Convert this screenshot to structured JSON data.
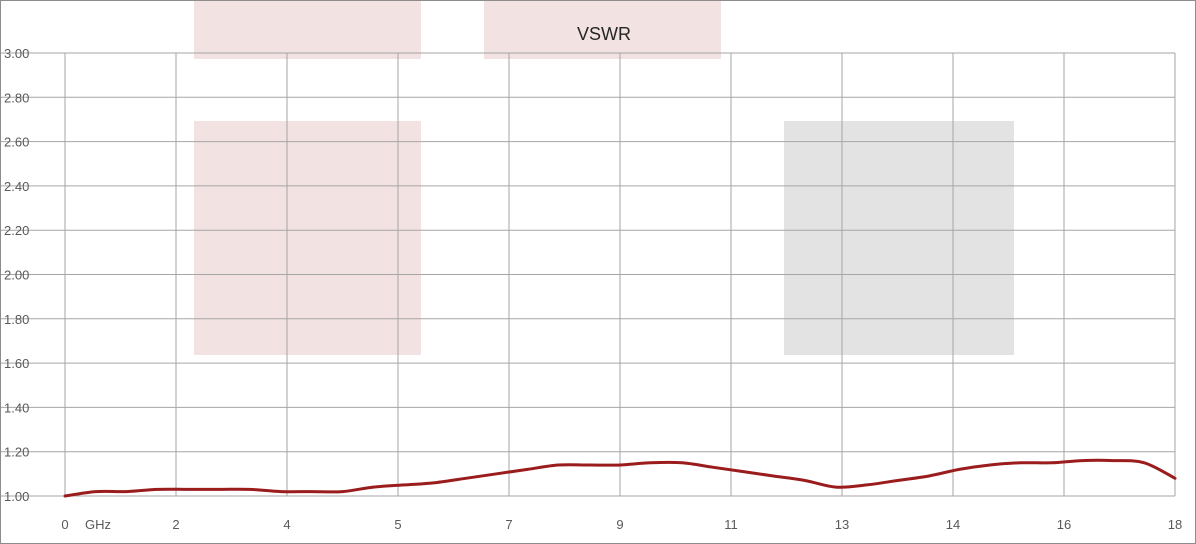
{
  "chart_data": {
    "type": "line",
    "title": "VSWR",
    "xlabel": "",
    "ylabel": "",
    "x_tick_labels": [
      "0",
      "2",
      "4",
      "5",
      "7",
      "9",
      "11",
      "13",
      "14",
      "16",
      "18"
    ],
    "x_unit_label": "GHz",
    "y_tick_labels": [
      "1.00",
      "1.20",
      "1.40",
      "1.60",
      "1.80",
      "2.00",
      "2.20",
      "2.40",
      "2.60",
      "2.80",
      "3.00"
    ],
    "ylim": [
      1.0,
      3.0
    ],
    "xlim": [
      0,
      18
    ],
    "grid": true,
    "series": [
      {
        "color": "#9b1c1c",
        "x": [
          0,
          0.5,
          1,
          1.5,
          2,
          2.5,
          3,
          3.5,
          4,
          4.5,
          5,
          5.5,
          6,
          6.5,
          7,
          7.5,
          8,
          8.5,
          9,
          9.5,
          10,
          10.5,
          11,
          11.5,
          12,
          12.5,
          13,
          13.5,
          14,
          14.5,
          15,
          15.5,
          16,
          16.5,
          17,
          17.5,
          18
        ],
        "y": [
          1.0,
          1.02,
          1.02,
          1.03,
          1.03,
          1.03,
          1.03,
          1.02,
          1.02,
          1.02,
          1.04,
          1.05,
          1.06,
          1.08,
          1.1,
          1.12,
          1.14,
          1.14,
          1.14,
          1.15,
          1.15,
          1.13,
          1.11,
          1.09,
          1.07,
          1.04,
          1.05,
          1.07,
          1.09,
          1.12,
          1.14,
          1.15,
          1.15,
          1.16,
          1.16,
          1.15,
          1.08
        ]
      }
    ]
  },
  "colors": {
    "line": "#9b1c1c",
    "pink_box": "#f2e2e2",
    "gray_box": "#e3e3e3",
    "grid": "#a6a6a6"
  }
}
